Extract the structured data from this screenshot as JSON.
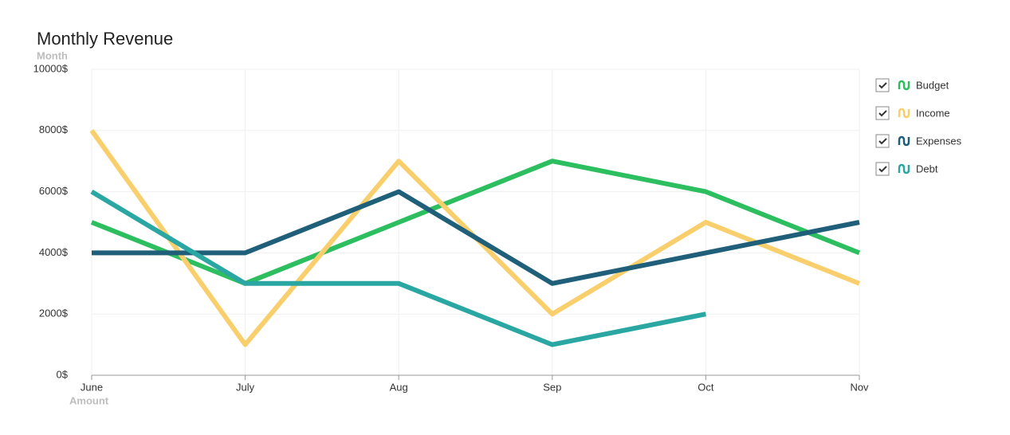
{
  "chart_data": {
    "type": "line",
    "title": "Monthly Revenue",
    "y_label": "Month",
    "x_label": "Amount",
    "categories": [
      "June",
      "July",
      "Aug",
      "Sep",
      "Oct",
      "Nov"
    ],
    "series": [
      {
        "name": "Budget",
        "color": "#2dbe60",
        "values": [
          5000,
          3000,
          5000,
          7000,
          6000,
          4000
        ]
      },
      {
        "name": "Income",
        "color": "#f8cf6c",
        "values": [
          8000,
          1000,
          7000,
          2000,
          5000,
          3000
        ]
      },
      {
        "name": "Expenses",
        "color": "#1f5f7a",
        "values": [
          4000,
          4000,
          6000,
          3000,
          4000,
          5000
        ]
      },
      {
        "name": "Debt",
        "color": "#2aa7a3",
        "values": [
          6000,
          3000,
          3000,
          1000,
          2000,
          null
        ]
      }
    ],
    "ylim": [
      0,
      10000
    ],
    "yticks": [
      {
        "value": 0,
        "label": "0$"
      },
      {
        "value": 2000,
        "label": "2000$"
      },
      {
        "value": 4000,
        "label": "4000$"
      },
      {
        "value": 6000,
        "label": "6000$"
      },
      {
        "value": 8000,
        "label": "8000$"
      },
      {
        "value": 10000,
        "label": "10000$"
      }
    ],
    "grid": true,
    "legend": "right"
  }
}
